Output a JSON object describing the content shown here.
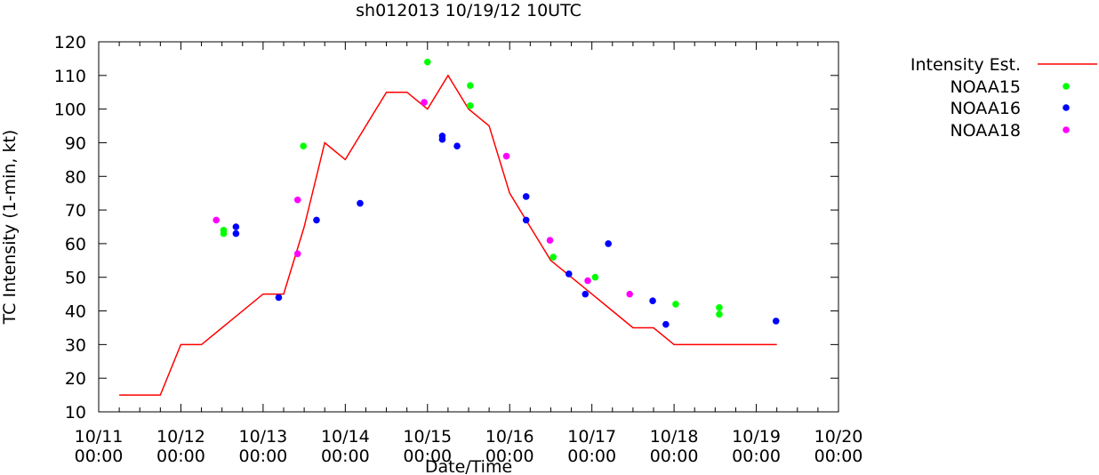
{
  "chart_data": {
    "type": "line",
    "title": "sh012013 10/19/12 10UTC",
    "xlabel": "Date/Time",
    "ylabel": "TC Intensity (1-min, kt)",
    "ylim": [
      10,
      120
    ],
    "yticks": [
      10,
      20,
      30,
      40,
      50,
      60,
      70,
      80,
      90,
      100,
      110,
      120
    ],
    "xlim": [
      0,
      9
    ],
    "xticks": [
      {
        "x": 0,
        "line1": "10/11",
        "line2": "00:00"
      },
      {
        "x": 1,
        "line1": "10/12",
        "line2": "00:00"
      },
      {
        "x": 2,
        "line1": "10/13",
        "line2": "00:00"
      },
      {
        "x": 3,
        "line1": "10/14",
        "line2": "00:00"
      },
      {
        "x": 4,
        "line1": "10/15",
        "line2": "00:00"
      },
      {
        "x": 5,
        "line1": "10/16",
        "line2": "00:00"
      },
      {
        "x": 6,
        "line1": "10/17",
        "line2": "00:00"
      },
      {
        "x": 7,
        "line1": "10/18",
        "line2": "00:00"
      },
      {
        "x": 8,
        "line1": "10/19",
        "line2": "00:00"
      },
      {
        "x": 9,
        "line1": "10/20",
        "line2": "00:00"
      }
    ],
    "grid": false,
    "legend_position": "outside-top-right",
    "series": [
      {
        "name": "Intensity Est.",
        "kind": "line",
        "color": "#ff0000",
        "points": [
          [
            0.25,
            15
          ],
          [
            0.75,
            15
          ],
          [
            1.0,
            30
          ],
          [
            1.25,
            30
          ],
          [
            2.0,
            45
          ],
          [
            2.25,
            45
          ],
          [
            2.5,
            65
          ],
          [
            2.75,
            90
          ],
          [
            3.0,
            85
          ],
          [
            3.5,
            105
          ],
          [
            3.75,
            105
          ],
          [
            4.0,
            100
          ],
          [
            4.25,
            110
          ],
          [
            4.5,
            100
          ],
          [
            4.75,
            95
          ],
          [
            5.0,
            75
          ],
          [
            5.25,
            65
          ],
          [
            5.5,
            55
          ],
          [
            5.75,
            50
          ],
          [
            6.0,
            45
          ],
          [
            6.25,
            40
          ],
          [
            6.5,
            35
          ],
          [
            6.75,
            35
          ],
          [
            7.0,
            30
          ],
          [
            7.25,
            30
          ],
          [
            7.5,
            30
          ],
          [
            8.0,
            30
          ],
          [
            8.25,
            30
          ]
        ]
      },
      {
        "name": "NOAA15",
        "kind": "scatter",
        "color": "#00ff00",
        "points": [
          [
            1.52,
            64
          ],
          [
            1.52,
            63
          ],
          [
            2.49,
            89
          ],
          [
            4.0,
            114
          ],
          [
            4.52,
            107
          ],
          [
            4.52,
            101
          ],
          [
            5.53,
            56
          ],
          [
            6.04,
            50
          ],
          [
            7.02,
            42
          ],
          [
            7.55,
            41
          ],
          [
            7.55,
            39
          ]
        ]
      },
      {
        "name": "NOAA16",
        "kind": "scatter",
        "color": "#0000ff",
        "points": [
          [
            1.67,
            65
          ],
          [
            1.67,
            63
          ],
          [
            2.19,
            44
          ],
          [
            2.65,
            67
          ],
          [
            3.18,
            72
          ],
          [
            4.18,
            92
          ],
          [
            4.18,
            91
          ],
          [
            4.36,
            89
          ],
          [
            5.2,
            74
          ],
          [
            5.2,
            67
          ],
          [
            5.72,
            51
          ],
          [
            5.92,
            45
          ],
          [
            6.2,
            60
          ],
          [
            6.74,
            43
          ],
          [
            6.9,
            36
          ],
          [
            8.24,
            37
          ]
        ]
      },
      {
        "name": "NOAA18",
        "kind": "scatter",
        "color": "#ff00ff",
        "points": [
          [
            1.43,
            67
          ],
          [
            2.42,
            73
          ],
          [
            2.42,
            57
          ],
          [
            3.96,
            102
          ],
          [
            4.96,
            86
          ],
          [
            5.49,
            61
          ],
          [
            5.95,
            49
          ],
          [
            6.46,
            45
          ]
        ]
      }
    ]
  }
}
